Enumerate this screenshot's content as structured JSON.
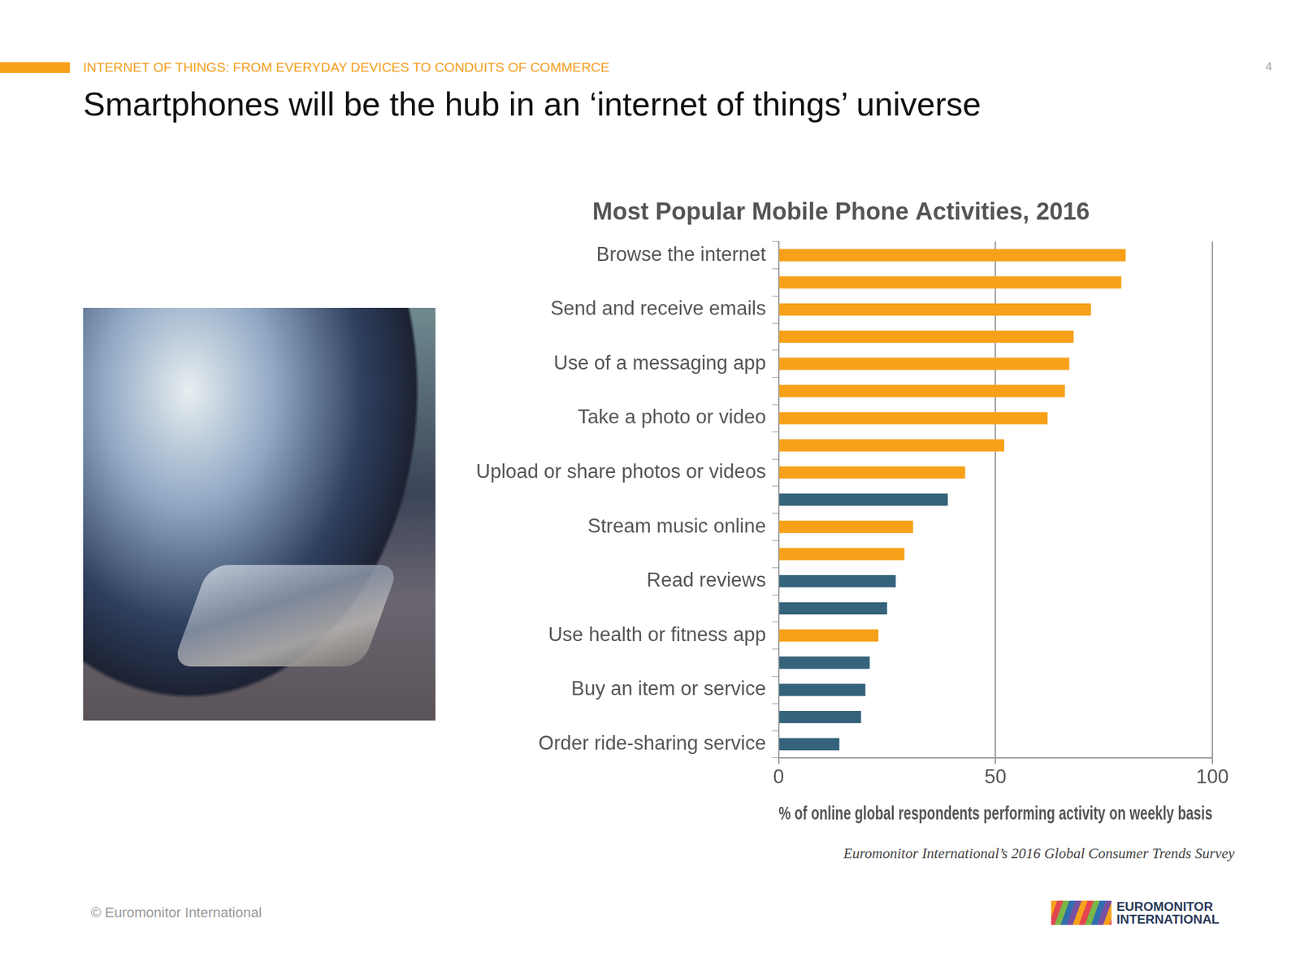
{
  "header": "INTERNET OF THINGS: FROM EVERYDAY DEVICES TO CONDUITS OF COMMERCE",
  "page_number": "4",
  "title": "Smartphones will be the hub in an ‘internet of things’ universe",
  "copyright": "© Euromonitor International",
  "logo": [
    "EUROMONITOR",
    "INTERNATIONAL"
  ],
  "chart_data": {
    "type": "bar",
    "orientation": "horizontal",
    "title": "Most Popular Mobile Phone Activities, 2016",
    "x_label": "% of online global respondents performing activity on weekly basis",
    "source": "Euromonitor International’s 2016 Global Consumer Trends Survey",
    "categories": [
      "Browse the internet",
      null,
      "Send and receive emails",
      null,
      "Use of a messaging app",
      null,
      "Take a photo or video",
      null,
      "Upload or share photos or videos",
      null,
      "Stream music online",
      null,
      "Read reviews",
      null,
      "Use health or fitness app",
      null,
      "Buy an item or service",
      null,
      "Order ride-sharing service"
    ],
    "values": [
      80,
      79,
      72,
      68,
      67,
      66,
      62,
      52,
      43,
      39,
      31,
      29,
      27,
      25,
      23,
      21,
      20,
      19,
      14
    ],
    "colors": [
      "#f7a11a",
      "#f7a11a",
      "#f7a11a",
      "#f7a11a",
      "#f7a11a",
      "#f7a11a",
      "#f7a11a",
      "#f7a11a",
      "#f7a11a",
      "#35637b",
      "#f7a11a",
      "#f7a11a",
      "#35637b",
      "#35637b",
      "#f7a11a",
      "#35637b",
      "#35637b",
      "#35637b",
      "#35637b"
    ],
    "xlim": [
      0,
      100
    ],
    "xticks": [
      0,
      50,
      100
    ],
    "grid": true
  }
}
